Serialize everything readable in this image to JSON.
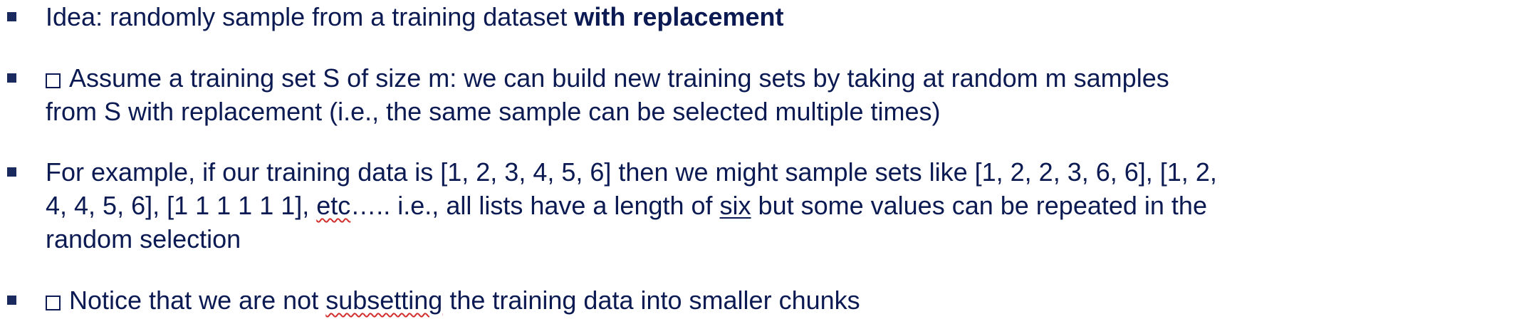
{
  "bullets": [
    {
      "lines": [
        {
          "pre": "Idea: randomly sample from a training dataset ",
          "bold": "with replacement"
        }
      ]
    },
    {
      "lines": [
        {
          "text": "Assume a training set S of size m: we can build new training sets by taking at random m samples"
        },
        {
          "text": "from S with replacement (i.e., the same sample can be selected multiple times)"
        }
      ]
    },
    {
      "lines": [
        {
          "text": "For example, if our training data is [1, 2, 3, 4, 5, 6] then we might sample sets like [1, 2, 2, 3, 6, 6], [1, 2,"
        },
        {
          "pre": "4, 4, 5, 6], [1 1 1 1 1 1], ",
          "squiggle": "etc",
          "mid": "….. i.e., all lists have a length of ",
          "underline": "six",
          "post": " but some values can be repeated in the"
        },
        {
          "text": "random selection"
        }
      ]
    },
    {
      "lines": [
        {
          "pre": "Notice that we are not ",
          "squiggle": "subsetting",
          "post": " the training data into smaller chunks"
        }
      ]
    }
  ]
}
